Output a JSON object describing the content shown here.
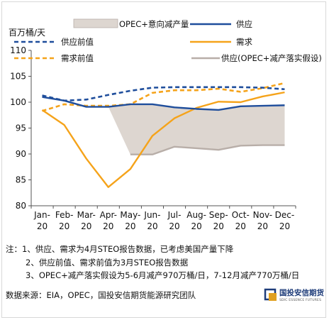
{
  "chart_data": {
    "type": "line",
    "ylabel": "百万桶/天",
    "ylim": [
      80,
      110
    ],
    "yticks": [
      80,
      85,
      90,
      95,
      100,
      105,
      110
    ],
    "categories": [
      "Jan-20",
      "Feb-20",
      "Mar-20",
      "Apr-20",
      "May-20",
      "Jun-20",
      "Jul-20",
      "Aug-20",
      "Sep-20",
      "Oct-20",
      "Nov-20",
      "Dec-20"
    ],
    "category_lines": [
      [
        "Jan-",
        "20"
      ],
      [
        "Feb-",
        "20"
      ],
      [
        "Mar-",
        "20"
      ],
      [
        "Apr-",
        "20"
      ],
      [
        "May-",
        "20"
      ],
      [
        "Jun-",
        "20"
      ],
      [
        "Jul-",
        "20"
      ],
      [
        "Aug-",
        "20"
      ],
      [
        "Sep-",
        "20"
      ],
      [
        "Oct-",
        "20"
      ],
      [
        "Nov-",
        "20"
      ],
      [
        "Dec-",
        "20"
      ]
    ],
    "legend": {
      "opec_area": "OPEC+意向减产量",
      "supply": "供应",
      "supply_prev": "供应前值",
      "demand": "需求",
      "demand_prev": "需求前值",
      "supply_opec": "供应(OPEC+减产落实假设)"
    },
    "series": [
      {
        "key": "supply",
        "name": "供应",
        "color": "#1f4e9c",
        "style": "solid",
        "values": [
          101.0,
          100.3,
          99.1,
          99.1,
          99.6,
          99.6,
          99.0,
          98.7,
          98.5,
          99.2,
          99.3,
          99.4
        ]
      },
      {
        "key": "supply_prev",
        "name": "供应前值",
        "color": "#1f4e9c",
        "style": "dashed",
        "values": [
          101.3,
          100.3,
          100.5,
          101.4,
          102.2,
          102.8,
          102.9,
          102.9,
          102.9,
          102.9,
          102.8,
          102.5
        ]
      },
      {
        "key": "demand",
        "name": "需求",
        "color": "#f5a31a",
        "style": "solid",
        "values": [
          98.5,
          95.6,
          89.1,
          83.6,
          87.1,
          93.5,
          96.9,
          98.9,
          100.1,
          100.0,
          101.1,
          101.9
        ]
      },
      {
        "key": "demand_prev",
        "name": "需求前值",
        "color": "#f5a31a",
        "style": "dashed",
        "values": [
          98.3,
          99.6,
          99.3,
          99.3,
          99.6,
          101.8,
          102.3,
          102.3,
          102.6,
          102.0,
          102.7,
          103.7
        ]
      },
      {
        "key": "supply_opec",
        "name": "供应(OPEC+减产落实假设)",
        "color": "#b8aea8",
        "style": "solid",
        "values": [
          null,
          null,
          null,
          null,
          89.9,
          89.9,
          91.4,
          91.1,
          90.8,
          91.6,
          91.7,
          91.7
        ]
      }
    ],
    "opec_area": {
      "color": "#ddd6d0",
      "upper": "supply",
      "lower": "supply_opec",
      "from_index": 3,
      "to_index": 11
    }
  },
  "notes": [
    "注：1、供应、需求为4月STEO报告数据，已考虑美国产量下降",
    "2、供应前值、需求前值为3月STEO报告数据",
    "3、OPEC+减产落实假设为5-6月减产970万桶/日，7-12月减产770万桶/日"
  ],
  "source": "数据来源：EIA，OPEC，国投安信期货能源研究团队",
  "logo": {
    "cn": "国投安信期货",
    "en": "SDIC ESSENCE FUTURES"
  }
}
